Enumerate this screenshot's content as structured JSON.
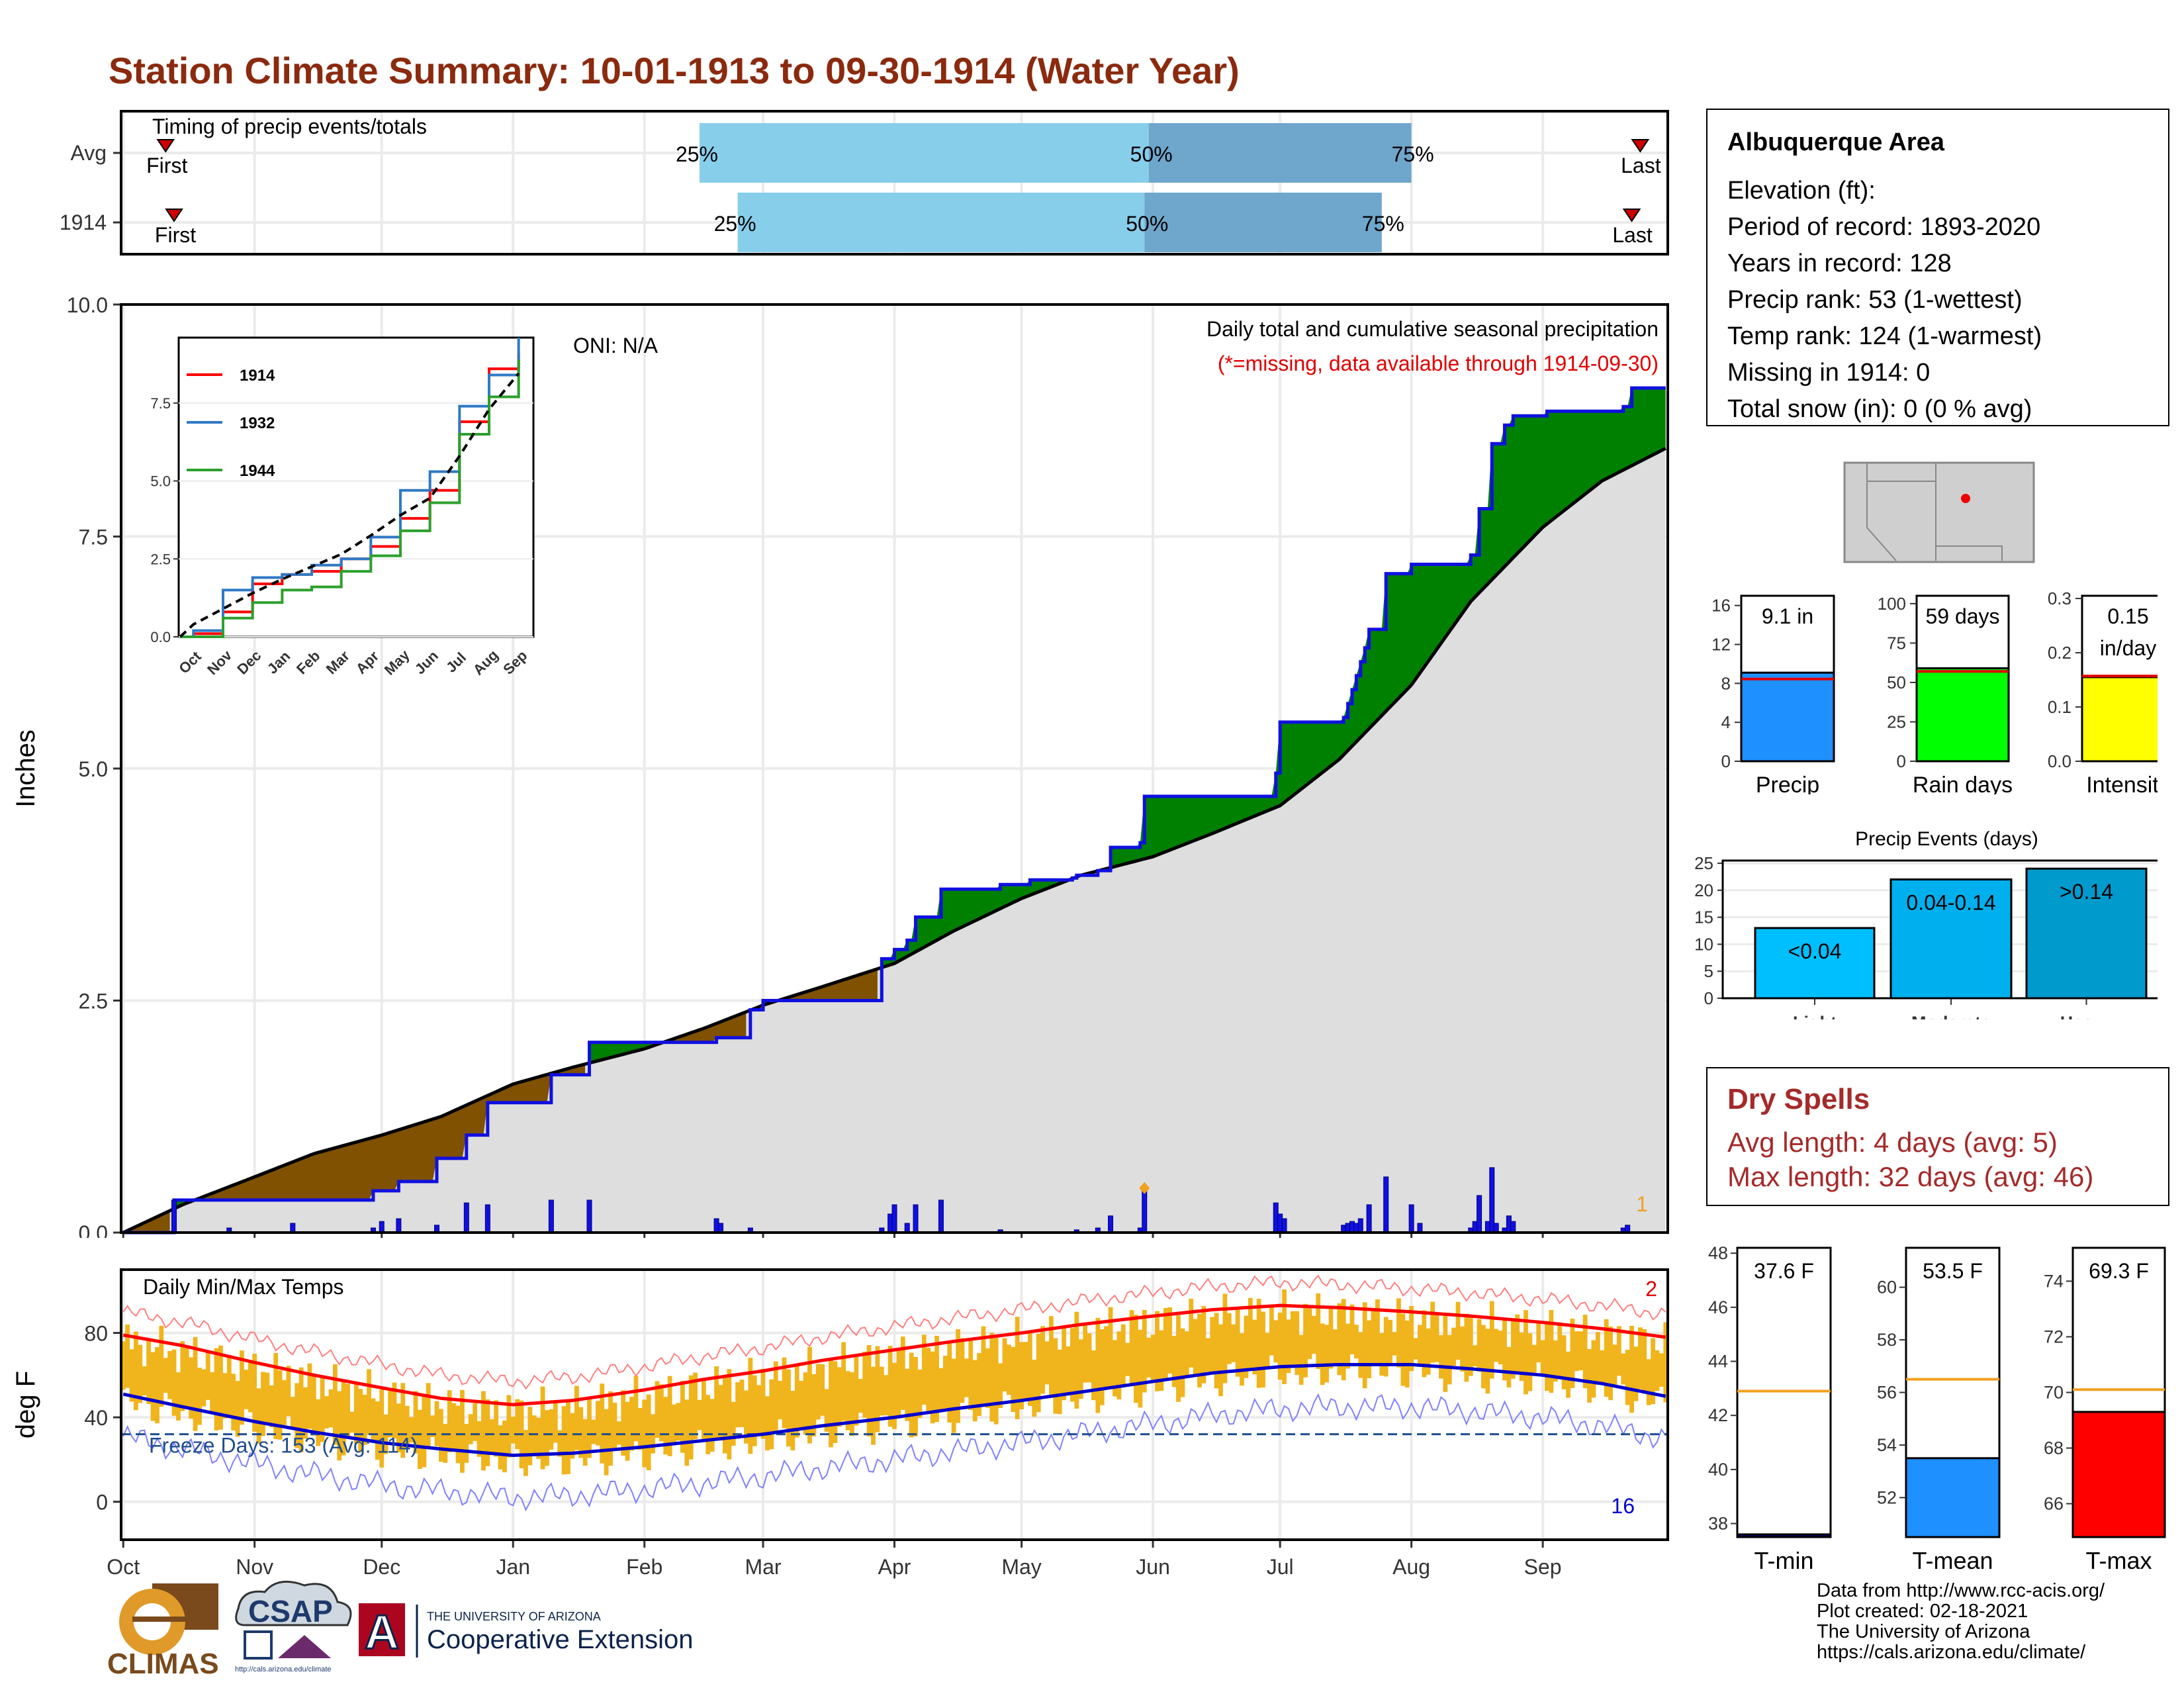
{
  "title": "Station Climate Summary: 10-01-1913 to 09-30-1914 (Water Year)",
  "info": {
    "station": "Albuquerque Area",
    "rows": [
      "Elevation (ft):",
      "Period of record: 1893-2020",
      "Years in record: 128",
      "Precip rank: 53 (1-wettest)",
      "Temp rank: 124 (1-warmest)",
      "Missing in 1914: 0",
      "Total snow (in): 0 (0 % avg)"
    ]
  },
  "dry_spells": {
    "title": "Dry Spells",
    "avg_length": "Avg length: 4 days (avg: 5)",
    "max_length": "Max length: 32 days (avg: 46)"
  },
  "credits": [
    "Data from http://www.rcc-acis.org/",
    "Plot created: 02-18-2021",
    "The University of Arizona",
    "https://cals.arizona.edu/climate/"
  ],
  "logos": {
    "climas": "CLIMAS",
    "csap": "CSAP",
    "csap_url": "http://cals.arizona.edu/climate",
    "ua_small": "THE UNIVERSITY OF ARIZONA",
    "ua_big": "Cooperative Extension",
    "ua_letter": "A"
  },
  "colors": {
    "title": "#8b2a0e",
    "light_blue": "#87ceeb",
    "mid_blue": "#6fa6cc",
    "above_avg": "#008000",
    "below_avg": "#7f5100",
    "cumulative_fill": "#dedede",
    "temp_bars": "#f0b41c",
    "tmax": "#ff0000",
    "tmin": "#0000cd",
    "dry_spells": "#a52a2a"
  },
  "chart_data": [
    {
      "id": "timing",
      "type": "bar",
      "title": "Timing of precip events/totals",
      "rows": [
        {
          "label": "Avg",
          "p25": "2014-02-14",
          "p50": "2014-05-31",
          "p75": "2014-08-01",
          "first": "2013-10-11",
          "last": "2014-09-24"
        },
        {
          "label": "1914",
          "p25": "2014-02-23",
          "p50": "2014-05-30",
          "p75": "2014-07-25",
          "first": "2013-10-13",
          "last": "2014-09-22"
        }
      ],
      "labels": {
        "p25": "25%",
        "p50": "50%",
        "p75": "75%",
        "first": "First",
        "last": "Last"
      }
    },
    {
      "id": "precip",
      "type": "area",
      "title": "Daily total and cumulative seasonal precipitation",
      "subtitle": "(*=missing, data available through 1914-09-30)",
      "oni": "ONI: N/A",
      "ylabel": "Inches",
      "ylim": [
        0,
        10
      ],
      "yticks": [
        "0.0",
        "2.5",
        "5.0",
        "7.5",
        "10.0"
      ],
      "corner_count": "1",
      "avg_cum": [
        [
          "1913-10-01",
          0
        ],
        [
          "1913-10-15",
          0.3
        ],
        [
          "1913-11-01",
          0.6
        ],
        [
          "1913-11-15",
          0.85
        ],
        [
          "1913-12-01",
          1.05
        ],
        [
          "1913-12-15",
          1.25
        ],
        [
          "1914-01-01",
          1.6
        ],
        [
          "1914-01-15",
          1.78
        ],
        [
          "1914-02-01",
          1.98
        ],
        [
          "1914-02-15",
          2.2
        ],
        [
          "1914-03-01",
          2.45
        ],
        [
          "1914-03-15",
          2.65
        ],
        [
          "1914-04-01",
          2.9
        ],
        [
          "1914-04-15",
          3.25
        ],
        [
          "1914-05-01",
          3.6
        ],
        [
          "1914-05-15",
          3.85
        ],
        [
          "1914-06-01",
          4.05
        ],
        [
          "1914-06-15",
          4.3
        ],
        [
          "1914-07-01",
          4.6
        ],
        [
          "1914-07-15",
          5.1
        ],
        [
          "1914-08-01",
          5.9
        ],
        [
          "1914-08-15",
          6.8
        ],
        [
          "1914-09-01",
          7.6
        ],
        [
          "1914-09-15",
          8.1
        ],
        [
          "1914-09-30",
          8.45
        ]
      ],
      "obs_cum": [
        [
          "1913-10-01",
          0
        ],
        [
          "1913-10-13",
          0.35
        ],
        [
          "1913-11-29",
          0.45
        ],
        [
          "1913-12-05",
          0.55
        ],
        [
          "1913-12-14",
          0.8
        ],
        [
          "1913-12-21",
          1.05
        ],
        [
          "1913-12-26",
          1.4
        ],
        [
          "1914-01-10",
          1.7
        ],
        [
          "1914-01-19",
          2.05
        ],
        [
          "1914-02-18",
          2.1
        ],
        [
          "1914-02-26",
          2.4
        ],
        [
          "1914-03-01",
          2.5
        ],
        [
          "1914-03-29",
          2.95
        ],
        [
          "1914-04-01",
          3.05
        ],
        [
          "1914-04-04",
          3.15
        ],
        [
          "1914-04-06",
          3.4
        ],
        [
          "1914-04-12",
          3.7
        ],
        [
          "1914-04-26",
          3.75
        ],
        [
          "1914-05-03",
          3.8
        ],
        [
          "1914-05-13",
          3.82
        ],
        [
          "1914-05-14",
          3.85
        ],
        [
          "1914-05-19",
          3.9
        ],
        [
          "1914-05-22",
          4.15
        ],
        [
          "1914-05-29",
          4.2
        ],
        [
          "1914-05-30",
          4.7
        ],
        [
          "1914-06-30",
          4.95
        ],
        [
          "1914-07-01",
          5.5
        ],
        [
          "1914-07-16",
          5.55
        ],
        [
          "1914-07-17",
          5.7
        ],
        [
          "1914-07-18",
          5.85
        ],
        [
          "1914-07-19",
          6.0
        ],
        [
          "1914-07-20",
          6.15
        ],
        [
          "1914-07-21",
          6.3
        ],
        [
          "1914-07-22",
          6.5
        ],
        [
          "1914-07-26",
          7.1
        ],
        [
          "1914-08-01",
          7.2
        ],
        [
          "1914-08-15",
          7.3
        ],
        [
          "1914-08-17",
          7.8
        ],
        [
          "1914-08-20",
          8.5
        ],
        [
          "1914-08-23",
          8.7
        ],
        [
          "1914-08-25",
          8.8
        ],
        [
          "1914-09-02",
          8.85
        ],
        [
          "1914-09-20",
          8.9
        ],
        [
          "1914-09-22",
          9.1
        ],
        [
          "1914-09-30",
          9.1
        ]
      ],
      "daily": [
        [
          "1913-10-13",
          0.35
        ],
        [
          "1913-10-26",
          0.05
        ],
        [
          "1913-11-10",
          0.1
        ],
        [
          "1913-11-29",
          0.05
        ],
        [
          "1913-12-01",
          0.12
        ],
        [
          "1913-12-05",
          0.15
        ],
        [
          "1913-12-14",
          0.08
        ],
        [
          "1913-12-21",
          0.32
        ],
        [
          "1913-12-26",
          0.3
        ],
        [
          "1914-01-10",
          0.35
        ],
        [
          "1914-01-19",
          0.35
        ],
        [
          "1914-02-18",
          0.15
        ],
        [
          "1914-02-19",
          0.1
        ],
        [
          "1914-02-26",
          0.05
        ],
        [
          "1914-03-29",
          0.05
        ],
        [
          "1914-03-31",
          0.2
        ],
        [
          "1914-04-01",
          0.3
        ],
        [
          "1914-04-04",
          0.1
        ],
        [
          "1914-04-06",
          0.3
        ],
        [
          "1914-04-12",
          0.35
        ],
        [
          "1914-04-26",
          0.03
        ],
        [
          "1914-05-14",
          0.03
        ],
        [
          "1914-05-19",
          0.05
        ],
        [
          "1914-05-22",
          0.18
        ],
        [
          "1914-05-29",
          0.05
        ],
        [
          "1914-05-30",
          0.45
        ],
        [
          "1914-06-30",
          0.32
        ],
        [
          "1914-07-01",
          0.2
        ],
        [
          "1914-07-02",
          0.15
        ],
        [
          "1914-07-16",
          0.08
        ],
        [
          "1914-07-17",
          0.1
        ],
        [
          "1914-07-18",
          0.12
        ],
        [
          "1914-07-19",
          0.1
        ],
        [
          "1914-07-20",
          0.15
        ],
        [
          "1914-07-22",
          0.3
        ],
        [
          "1914-07-26",
          0.6
        ],
        [
          "1914-08-01",
          0.3
        ],
        [
          "1914-08-03",
          0.1
        ],
        [
          "1914-08-15",
          0.05
        ],
        [
          "1914-08-16",
          0.12
        ],
        [
          "1914-08-17",
          0.4
        ],
        [
          "1914-08-19",
          0.12
        ],
        [
          "1914-08-20",
          0.7
        ],
        [
          "1914-08-21",
          0.1
        ],
        [
          "1914-08-23",
          0.05
        ],
        [
          "1914-08-24",
          0.18
        ],
        [
          "1914-08-25",
          0.12
        ],
        [
          "1914-09-20",
          0.05
        ],
        [
          "1914-09-21",
          0.08
        ]
      ],
      "missing_marker_date": "1914-05-30"
    },
    {
      "id": "cumulative-inset",
      "type": "line",
      "ylim": [
        0,
        9.6
      ],
      "yticks": [
        "0.0",
        "2.5",
        "5.0",
        "7.5"
      ],
      "xticks": [
        "Oct",
        "Nov",
        "Dec",
        "Jan",
        "Feb",
        "Mar",
        "Apr",
        "May",
        "Jun",
        "Jul",
        "Aug",
        "Sep"
      ],
      "series": [
        {
          "name": "1914",
          "color": "#ff0000",
          "values": [
            0.1,
            0.8,
            1.7,
            2.0,
            2.1,
            2.5,
            2.9,
            3.8,
            4.7,
            6.9,
            8.6,
            9.1
          ]
        },
        {
          "name": "1932",
          "color": "#2f79c6",
          "values": [
            0.2,
            1.5,
            1.9,
            2.0,
            2.3,
            2.5,
            3.2,
            4.7,
            5.3,
            7.4,
            8.4,
            9.6
          ]
        },
        {
          "name": "1944",
          "color": "#2ca02c",
          "values": [
            0,
            0.6,
            1.1,
            1.5,
            1.6,
            2.1,
            2.6,
            3.4,
            4.3,
            6.5,
            7.7,
            8.9
          ]
        },
        {
          "name": "avg",
          "color": "#000000",
          "values": [
            0.4,
            0.9,
            1.4,
            1.85,
            2.25,
            2.65,
            3.25,
            3.9,
            4.45,
            5.8,
            7.3,
            8.45
          ]
        }
      ]
    },
    {
      "id": "temps",
      "type": "line",
      "title": "Daily Min/Max Temps",
      "ylabel": "deg F",
      "ylim": [
        -18,
        110
      ],
      "yticks": [
        "0",
        "40",
        "80"
      ],
      "freeze_line": 32,
      "freeze_text": "Freeze Days: 153 (Avg: 114)",
      "count_hot": "2",
      "count_cold": "16",
      "avg_max": [
        [
          "1913-10-01",
          79
        ],
        [
          "1913-10-15",
          74
        ],
        [
          "1913-11-01",
          66
        ],
        [
          "1913-11-15",
          60
        ],
        [
          "1913-12-01",
          54
        ],
        [
          "1913-12-15",
          49
        ],
        [
          "1914-01-01",
          46
        ],
        [
          "1914-01-15",
          48
        ],
        [
          "1914-02-01",
          53
        ],
        [
          "1914-02-15",
          58
        ],
        [
          "1914-03-01",
          62
        ],
        [
          "1914-03-15",
          67
        ],
        [
          "1914-04-01",
          72
        ],
        [
          "1914-04-15",
          76
        ],
        [
          "1914-05-01",
          80
        ],
        [
          "1914-05-15",
          84
        ],
        [
          "1914-06-01",
          88
        ],
        [
          "1914-06-15",
          91
        ],
        [
          "1914-07-01",
          93
        ],
        [
          "1914-07-15",
          92
        ],
        [
          "1914-08-01",
          90
        ],
        [
          "1914-08-15",
          88
        ],
        [
          "1914-09-01",
          85
        ],
        [
          "1914-09-15",
          82
        ],
        [
          "1914-09-30",
          78
        ]
      ],
      "avg_min": [
        [
          "1913-10-01",
          51
        ],
        [
          "1913-10-15",
          45
        ],
        [
          "1913-11-01",
          38
        ],
        [
          "1913-11-15",
          33
        ],
        [
          "1913-12-01",
          28
        ],
        [
          "1913-12-15",
          25
        ],
        [
          "1914-01-01",
          22
        ],
        [
          "1914-01-15",
          23
        ],
        [
          "1914-02-01",
          26
        ],
        [
          "1914-02-15",
          29
        ],
        [
          "1914-03-01",
          32
        ],
        [
          "1914-03-15",
          36
        ],
        [
          "1914-04-01",
          40
        ],
        [
          "1914-04-15",
          44
        ],
        [
          "1914-05-01",
          48
        ],
        [
          "1914-05-15",
          52
        ],
        [
          "1914-06-01",
          57
        ],
        [
          "1914-06-15",
          61
        ],
        [
          "1914-07-01",
          64
        ],
        [
          "1914-07-15",
          65
        ],
        [
          "1914-08-01",
          65
        ],
        [
          "1914-08-15",
          63
        ],
        [
          "1914-09-01",
          60
        ],
        [
          "1914-09-15",
          56
        ],
        [
          "1914-09-30",
          50
        ]
      ],
      "xticks": [
        "Oct",
        "Nov",
        "Dec",
        "Jan",
        "Feb",
        "Mar",
        "Apr",
        "May",
        "Jun",
        "Jul",
        "Aug",
        "Sep"
      ]
    },
    {
      "id": "precip-summary",
      "type": "bar",
      "panels": [
        {
          "label": "Precip",
          "value": 9.1,
          "avg": 8.45,
          "ymax": 17,
          "yticks": [
            "0",
            "4",
            "8",
            "12",
            "16"
          ],
          "text": "9.1 in",
          "color": "#1e90ff"
        },
        {
          "label": "Rain days",
          "value": 59,
          "avg": 57,
          "ymax": 105,
          "yticks": [
            "0",
            "25",
            "50",
            "75",
            "100"
          ],
          "text": "59 days",
          "color": "#00ff00"
        },
        {
          "label": "Intensity",
          "value": 0.155,
          "avg": 0.157,
          "ymax": 0.305,
          "yticks": [
            "0.0",
            "0.1",
            "0.2",
            "0.3"
          ],
          "text": "0.15",
          "text2": "in/day",
          "color": "#ffff00"
        }
      ]
    },
    {
      "id": "precip-events",
      "type": "bar",
      "title": "Precip Events (days)",
      "categories": [
        "Light",
        "Moderate",
        "Heavy"
      ],
      "values": [
        13,
        22,
        24
      ],
      "bar_labels": [
        "<0.04",
        "0.04-0.14",
        ">0.14"
      ],
      "colors": [
        "#00bfff",
        "#00b0ee",
        "#009acd"
      ],
      "yticks": [
        "0",
        "5",
        "10",
        "15",
        "20",
        "25"
      ],
      "ylim": [
        0,
        25.5
      ]
    },
    {
      "id": "temp-summary",
      "type": "bar",
      "panels": [
        {
          "label": "T-min",
          "value": 37.6,
          "avg": 42.9,
          "ylim": [
            37.5,
            48.2
          ],
          "yticks": [
            "38",
            "40",
            "42",
            "44",
            "46",
            "48"
          ],
          "text": "37.6 F",
          "color": "#00008b"
        },
        {
          "label": "T-mean",
          "value": 53.5,
          "avg": 56.5,
          "ylim": [
            50.5,
            61.5
          ],
          "yticks": [
            "52",
            "54",
            "56",
            "58",
            "60"
          ],
          "text": "53.5 F",
          "color": "#1e90ff"
        },
        {
          "label": "T-max",
          "value": 69.3,
          "avg": 70.1,
          "ylim": [
            64.8,
            75.2
          ],
          "yticks": [
            "66",
            "68",
            "70",
            "72",
            "74"
          ],
          "text": "69.3 F",
          "color": "#ff0000"
        }
      ]
    }
  ]
}
